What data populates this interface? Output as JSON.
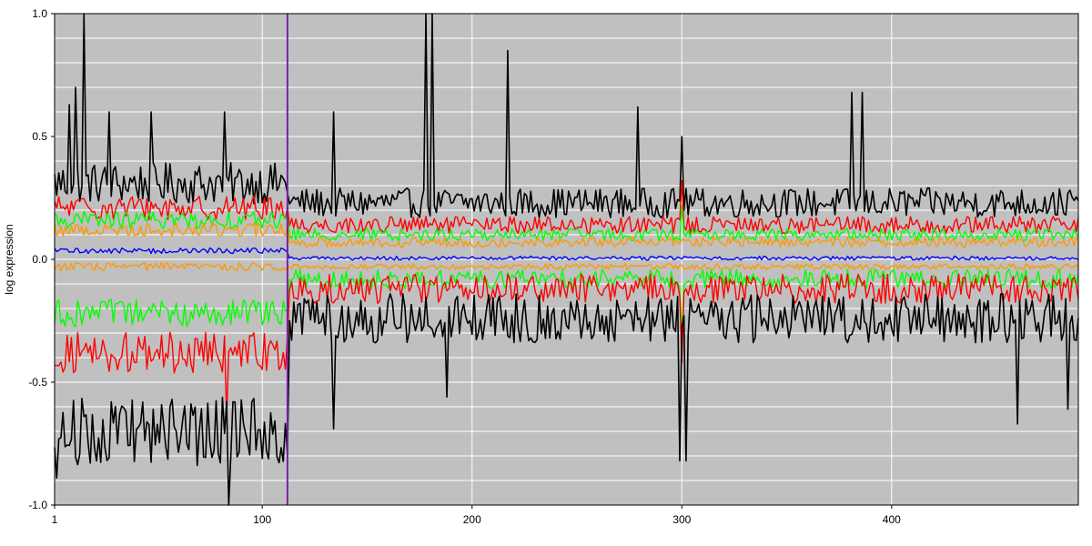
{
  "chart_data": {
    "type": "line",
    "title": "",
    "xlabel": "",
    "ylabel": "log expression",
    "xlim": [
      1,
      489
    ],
    "ylim": [
      -1.0,
      1.0
    ],
    "x_ticks": [
      1,
      100,
      200,
      300,
      400
    ],
    "y_ticks": [
      -1.0,
      -0.5,
      0.0,
      0.5,
      1.0
    ],
    "y_tick_labels": [
      "-1.0",
      "-0.5",
      "0.0",
      "0.5",
      "1.0"
    ],
    "grid": true,
    "background_color": "#c0c0c0",
    "grid_color": "#ffffff",
    "divider": {
      "x": 112,
      "color": "#7a1fa2"
    },
    "n_points": 489,
    "series": [
      {
        "color": "#000000",
        "role": "upper-envelope",
        "level_before_divider": 0.31,
        "level_after_divider": 0.23,
        "noise": 0.06,
        "spikes": [
          [
            15,
            1.0
          ],
          [
            8,
            0.63
          ],
          [
            11,
            0.7
          ],
          [
            27,
            0.6
          ],
          [
            47,
            0.6
          ],
          [
            82,
            0.6
          ],
          [
            134,
            0.6
          ],
          [
            178,
            1.0
          ],
          [
            181,
            1.0
          ],
          [
            217,
            0.85
          ],
          [
            279,
            0.62
          ],
          [
            300,
            0.5
          ],
          [
            381,
            0.68
          ],
          [
            386,
            0.68
          ]
        ]
      },
      {
        "color": "#ff0000",
        "role": "upper-outer",
        "level_before_divider": 0.21,
        "level_after_divider": 0.14,
        "noise": 0.035,
        "spikes": [
          [
            300,
            0.32
          ]
        ]
      },
      {
        "color": "#00ff00",
        "role": "upper-inner",
        "level_before_divider": 0.16,
        "level_after_divider": 0.1,
        "noise": 0.025,
        "spikes": [
          [
            300,
            0.22
          ]
        ]
      },
      {
        "color": "#ff9900",
        "role": "upper-median",
        "level_before_divider": 0.12,
        "level_after_divider": 0.07,
        "noise": 0.02,
        "spikes": []
      },
      {
        "color": "#0000ff",
        "role": "center",
        "level_before_divider": 0.035,
        "level_after_divider": 0.005,
        "noise": 0.008,
        "spikes": []
      },
      {
        "color": "#ff9900",
        "role": "lower-median",
        "level_before_divider": -0.03,
        "level_after_divider": -0.03,
        "noise": 0.012,
        "spikes": []
      },
      {
        "color": "#00ff00",
        "role": "lower-inner",
        "level_before_divider": -0.22,
        "level_after_divider": -0.08,
        "noise": 0.04,
        "spikes": [
          [
            300,
            -0.3
          ]
        ]
      },
      {
        "color": "#ff0000",
        "role": "lower-outer",
        "level_before_divider": -0.38,
        "level_after_divider": -0.12,
        "noise": 0.06,
        "spikes": [
          [
            300,
            -0.42
          ],
          [
            83,
            -0.65
          ]
        ]
      },
      {
        "color": "#000000",
        "role": "lower-envelope",
        "level_before_divider": -0.7,
        "level_after_divider": -0.24,
        "noise": 0.1,
        "spikes": [
          [
            2,
            -0.89
          ],
          [
            84,
            -1.0
          ],
          [
            134,
            -0.69
          ],
          [
            188,
            -0.56
          ],
          [
            299,
            -0.82
          ],
          [
            302,
            -0.82
          ],
          [
            460,
            -0.67
          ],
          [
            484,
            -0.61
          ]
        ]
      }
    ]
  }
}
